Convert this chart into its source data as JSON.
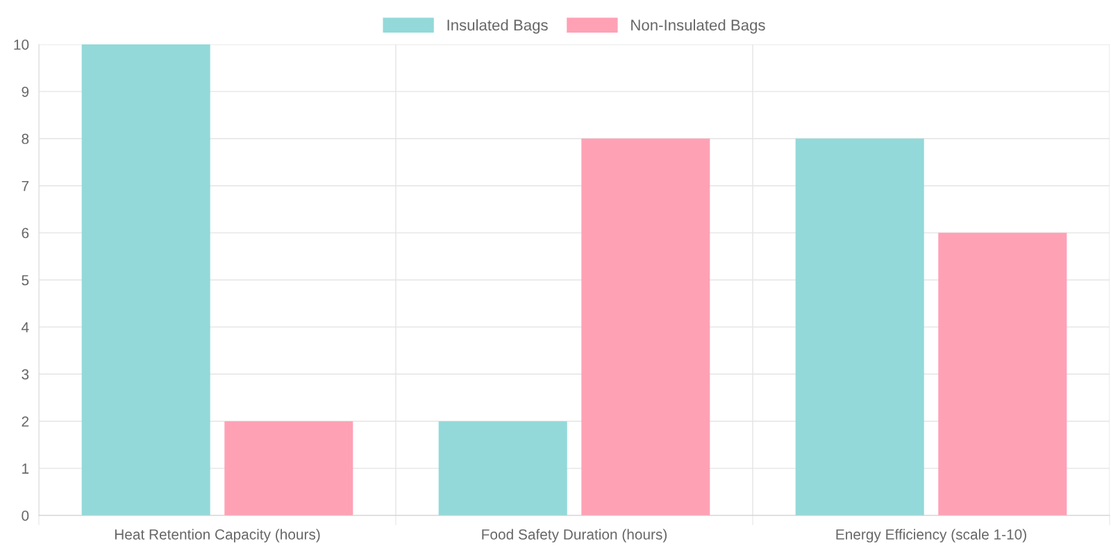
{
  "chart_data": {
    "type": "bar",
    "categories": [
      "Heat Retention Capacity (hours)",
      "Food Safety Duration (hours)",
      "Energy Efficiency (scale 1-10)"
    ],
    "series": [
      {
        "name": "Insulated Bags",
        "color": "#93d9d9",
        "values": [
          10,
          2,
          8
        ]
      },
      {
        "name": "Non-Insulated Bags",
        "color": "#ffa1b5",
        "values": [
          2,
          8,
          6
        ]
      }
    ],
    "ylim": [
      0,
      10
    ],
    "yticks": [
      0,
      1,
      2,
      3,
      4,
      5,
      6,
      7,
      8,
      9,
      10
    ],
    "grid": true,
    "legend": "top"
  }
}
